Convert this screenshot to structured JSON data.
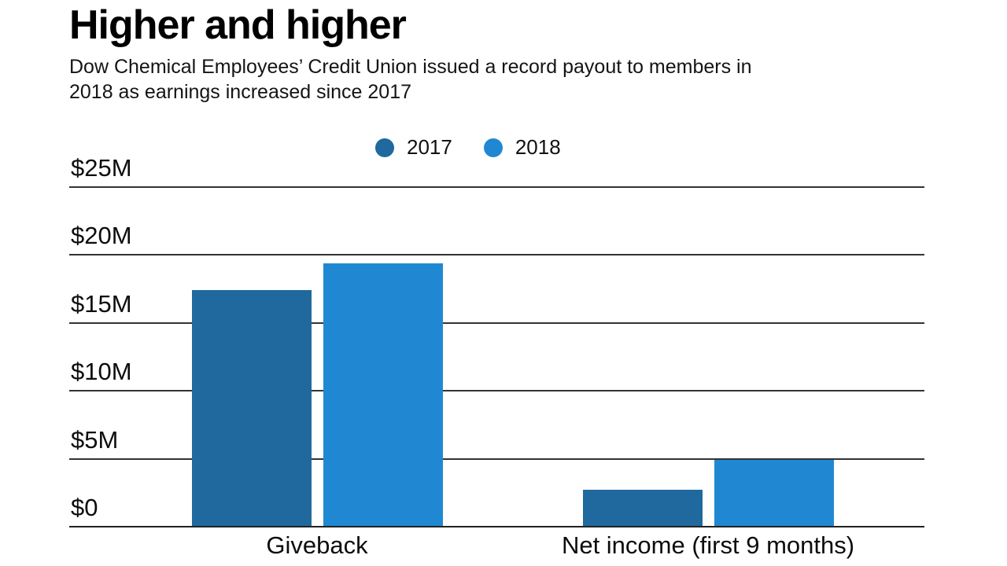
{
  "header": {
    "title": "Higher and higher",
    "subtitle": "Dow Chemical Employees’ Credit Union issued a record payout to members in\n2018 as earnings increased since 2017"
  },
  "legend": [
    {
      "label": "2017",
      "color": "#1f699e"
    },
    {
      "label": "2018",
      "color": "#2088d2"
    }
  ],
  "chart_data": {
    "type": "bar",
    "title": "Higher and higher",
    "subtitle": "Dow Chemical Employees’ Credit Union issued a record payout to members in 2018 as earnings increased since 2017",
    "categories": [
      "Giveback",
      "Net income (first 9 months)"
    ],
    "series": [
      {
        "name": "2017",
        "color": "#1f699e",
        "values": [
          17.4,
          2.7
        ]
      },
      {
        "name": "2018",
        "color": "#2088d2",
        "values": [
          19.4,
          4.9
        ]
      }
    ],
    "values_unit": "$M",
    "xlabel": "",
    "ylabel": "",
    "ylim": [
      0,
      25
    ],
    "yticks": [
      {
        "value": 25,
        "label": "$25M"
      },
      {
        "value": 20,
        "label": "$20M"
      },
      {
        "value": 15,
        "label": "$15M"
      },
      {
        "value": 10,
        "label": "$10M"
      },
      {
        "value": 5,
        "label": "$5M"
      },
      {
        "value": 0,
        "label": "$0"
      }
    ],
    "grid": true,
    "legend_position": "top-center"
  }
}
